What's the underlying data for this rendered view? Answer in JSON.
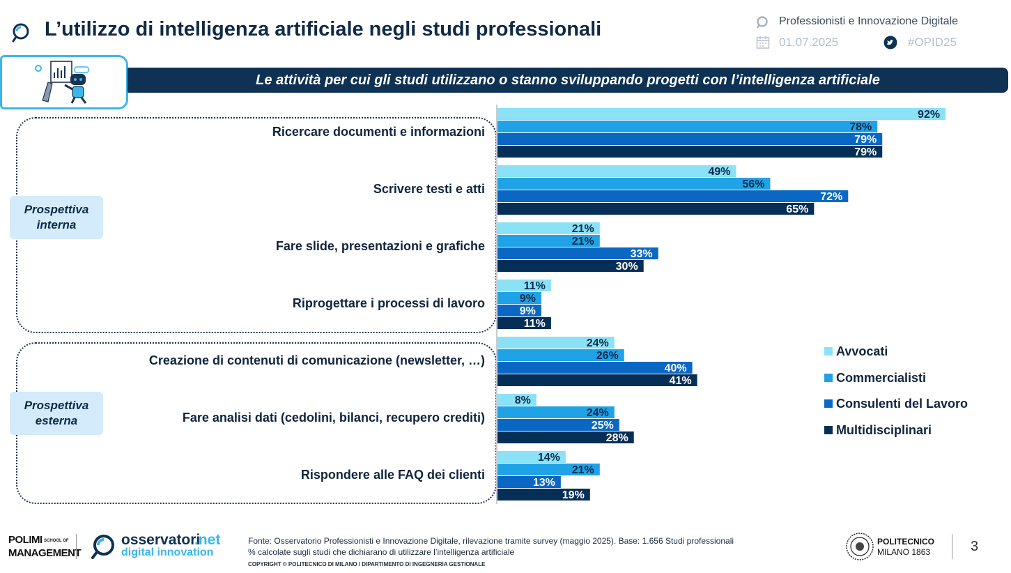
{
  "header": {
    "title": "L’utilizzo di intelligenza artificiale negli studi professionali",
    "program": "Professionisti e Innovazione Digitale",
    "date": "01.07.2025",
    "hashtag": "#OPID25",
    "search_icon": "search-icon",
    "calendar_icon": "calendar-icon",
    "twitter_icon": "twitter-icon"
  },
  "chart_data": {
    "type": "bar",
    "orientation": "horizontal",
    "title": "Le attività per cui gli studi utilizzano o stanno sviluppando progetti con l’intelligenza artificiale",
    "categories": [
      "Ricercare documenti e informazioni",
      "Scrivere testi e atti",
      "Fare slide, presentazioni e grafiche",
      "Riprogettare i processi di lavoro",
      "Creazione di contenuti di comunicazione (newsletter, …)",
      "Fare analisi dati (cedolini, bilanci, recupero crediti)",
      "Rispondere alle FAQ dei clienti"
    ],
    "series": [
      {
        "name": "Avvocati",
        "color": "#8be2f6",
        "values": [
          92,
          49,
          21,
          11,
          24,
          8,
          14
        ]
      },
      {
        "name": "Commercialisti",
        "color": "#1fa2e6",
        "values": [
          78,
          56,
          21,
          9,
          26,
          24,
          21
        ]
      },
      {
        "name": "Consulenti del Lavoro",
        "color": "#0a68c4",
        "values": [
          79,
          72,
          33,
          9,
          40,
          25,
          13
        ]
      },
      {
        "name": "Multidisciplinari",
        "color": "#062f57",
        "values": [
          79,
          65,
          30,
          11,
          41,
          28,
          19
        ]
      }
    ],
    "value_suffix": "%",
    "xlim": [
      0,
      100
    ],
    "legend_position": "right",
    "grid": false
  },
  "groups": [
    {
      "label": "Prospettiva interna"
    },
    {
      "label": "Prospettiva esterna"
    }
  ],
  "footer": {
    "source": "Fonte: Osservatorio Professionisti e Innovazione Digitale, rilevazione tramite survey (maggio 2025). Base: 1.656 Studi professionali",
    "note": "% calcolate sugli studi che dichiarano di utilizzare l’intelligenza artificiale",
    "copyright": "COPYRIGHT © POLITECNICO DI MILANO / DIPARTIMENTO DI INGEGNERIA GESTIONALE",
    "polimi_1": "POLIMI",
    "polimi_2": "MANAGEMENT",
    "polimi_school": "SCHOOL OF",
    "osservatori_1": "osservatori",
    "osservatori_2": ".net",
    "osservatori_3": "digital innovation",
    "politecnico_1": "POLITECNICO",
    "politecnico_2": "MILANO 1863",
    "page": "3"
  }
}
